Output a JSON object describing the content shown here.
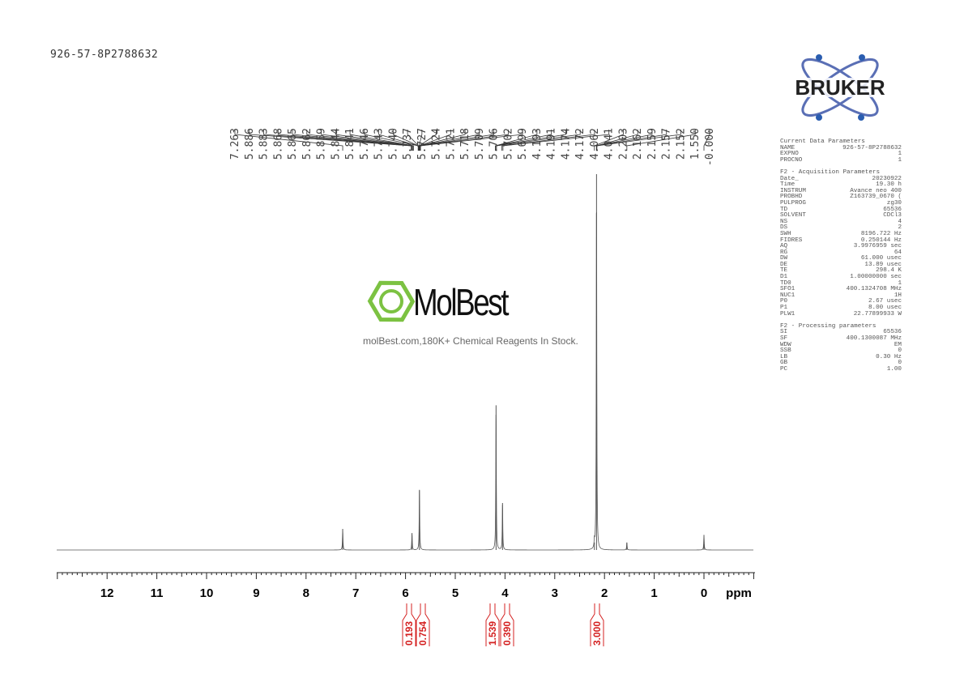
{
  "header": {
    "title": "926-57-8P2788632"
  },
  "logo": {
    "brand": "BRUKER"
  },
  "watermark": {
    "brand": "MolBest",
    "tagline": "molBest.com,180K+ Chemical Reagents In Stock."
  },
  "parameters": {
    "current": {
      "heading": "Current Data Parameters",
      "rows": [
        [
          "NAME",
          "926-57-8P2788632"
        ],
        [
          "EXPNO",
          "1"
        ],
        [
          "PROCNO",
          "1"
        ]
      ]
    },
    "acquisition": {
      "heading": "F2 - Acquisition Parameters",
      "rows": [
        [
          "Date_",
          "20230922"
        ],
        [
          "Time",
          "19.30 h"
        ],
        [
          "INSTRUM",
          "Avance neo 400"
        ],
        [
          "PROBHD",
          "Z163739_0670 ("
        ],
        [
          "PULPROG",
          "zg30"
        ],
        [
          "TD",
          "65536"
        ],
        [
          "SOLVENT",
          "CDCl3"
        ],
        [
          "NS",
          "4"
        ],
        [
          "DS",
          "2"
        ],
        [
          "SWH",
          "8196.722 Hz"
        ],
        [
          "FIDRES",
          "0.250144 Hz"
        ],
        [
          "AQ",
          "3.9976959 sec"
        ],
        [
          "RG",
          "64"
        ],
        [
          "DW",
          "61.000 usec"
        ],
        [
          "DE",
          "13.89 usec"
        ],
        [
          "TE",
          "298.4 K"
        ],
        [
          "D1",
          "1.00000000 sec"
        ],
        [
          "TD0",
          "1"
        ],
        [
          "SFO1",
          "400.1324708 MHz"
        ],
        [
          "NUC1",
          "1H"
        ],
        [
          "P0",
          "2.67 usec"
        ],
        [
          "P1",
          "8.00 usec"
        ],
        [
          "PLW1",
          "22.77899933 W"
        ]
      ]
    },
    "processing": {
      "heading": "F2 - Processing parameters",
      "rows": [
        [
          "SI",
          "65536"
        ],
        [
          "SF",
          "400.1300087 MHz"
        ],
        [
          "WDW",
          "EM"
        ],
        [
          "SSB",
          "0"
        ],
        [
          "LB",
          "0.30 Hz"
        ],
        [
          "GB",
          "0"
        ],
        [
          "PC",
          "1.00"
        ]
      ]
    }
  },
  "chart_data": {
    "type": "line",
    "xlabel": "ppm",
    "xlim": [
      13,
      -1
    ],
    "x_reversed": true,
    "xticks": [
      "12",
      "11",
      "10",
      "9",
      "8",
      "7",
      "6",
      "5",
      "4",
      "3",
      "2",
      "1",
      "0"
    ],
    "peak_labels": [
      "7.263",
      "5.886",
      "5.883",
      "5.868",
      "5.865",
      "5.862",
      "5.859",
      "5.844",
      "5.841",
      "5.746",
      "5.743",
      "5.740",
      "5.737",
      "5.727",
      "5.724",
      "5.721",
      "5.718",
      "5.709",
      "5.706",
      "5.702",
      "5.699",
      "4.193",
      "4.191",
      "4.174",
      "4.172",
      "4.062",
      "4.041",
      "2.203",
      "2.162",
      "2.159",
      "2.157",
      "2.152",
      "1.550",
      "-0.000"
    ],
    "peaks": [
      {
        "ppm": 7.263,
        "intensity": 0.056
      },
      {
        "ppm": 5.87,
        "intensity": 0.045
      },
      {
        "ppm": 5.72,
        "intensity": 0.16
      },
      {
        "ppm": 4.18,
        "intensity": 0.385
      },
      {
        "ppm": 4.05,
        "intensity": 0.125
      },
      {
        "ppm": 2.203,
        "intensity": 0.02
      },
      {
        "ppm": 2.16,
        "intensity": 1.0
      },
      {
        "ppm": 1.55,
        "intensity": 0.02
      },
      {
        "ppm": 0.0,
        "intensity": 0.04
      }
    ],
    "integrals": [
      {
        "ppm": 5.87,
        "value": "0.193"
      },
      {
        "ppm": 5.72,
        "value": "0.754"
      },
      {
        "ppm": 4.18,
        "value": "1.539"
      },
      {
        "ppm": 4.05,
        "value": "0.390"
      },
      {
        "ppm": 2.16,
        "value": "3.000"
      }
    ],
    "colors": {
      "spectrum": "#555555",
      "integral": "#d42020",
      "logo_blue": "#2a5db0",
      "logo_ring": "#5a6fb5",
      "watermark_green": "#7cc242"
    }
  }
}
